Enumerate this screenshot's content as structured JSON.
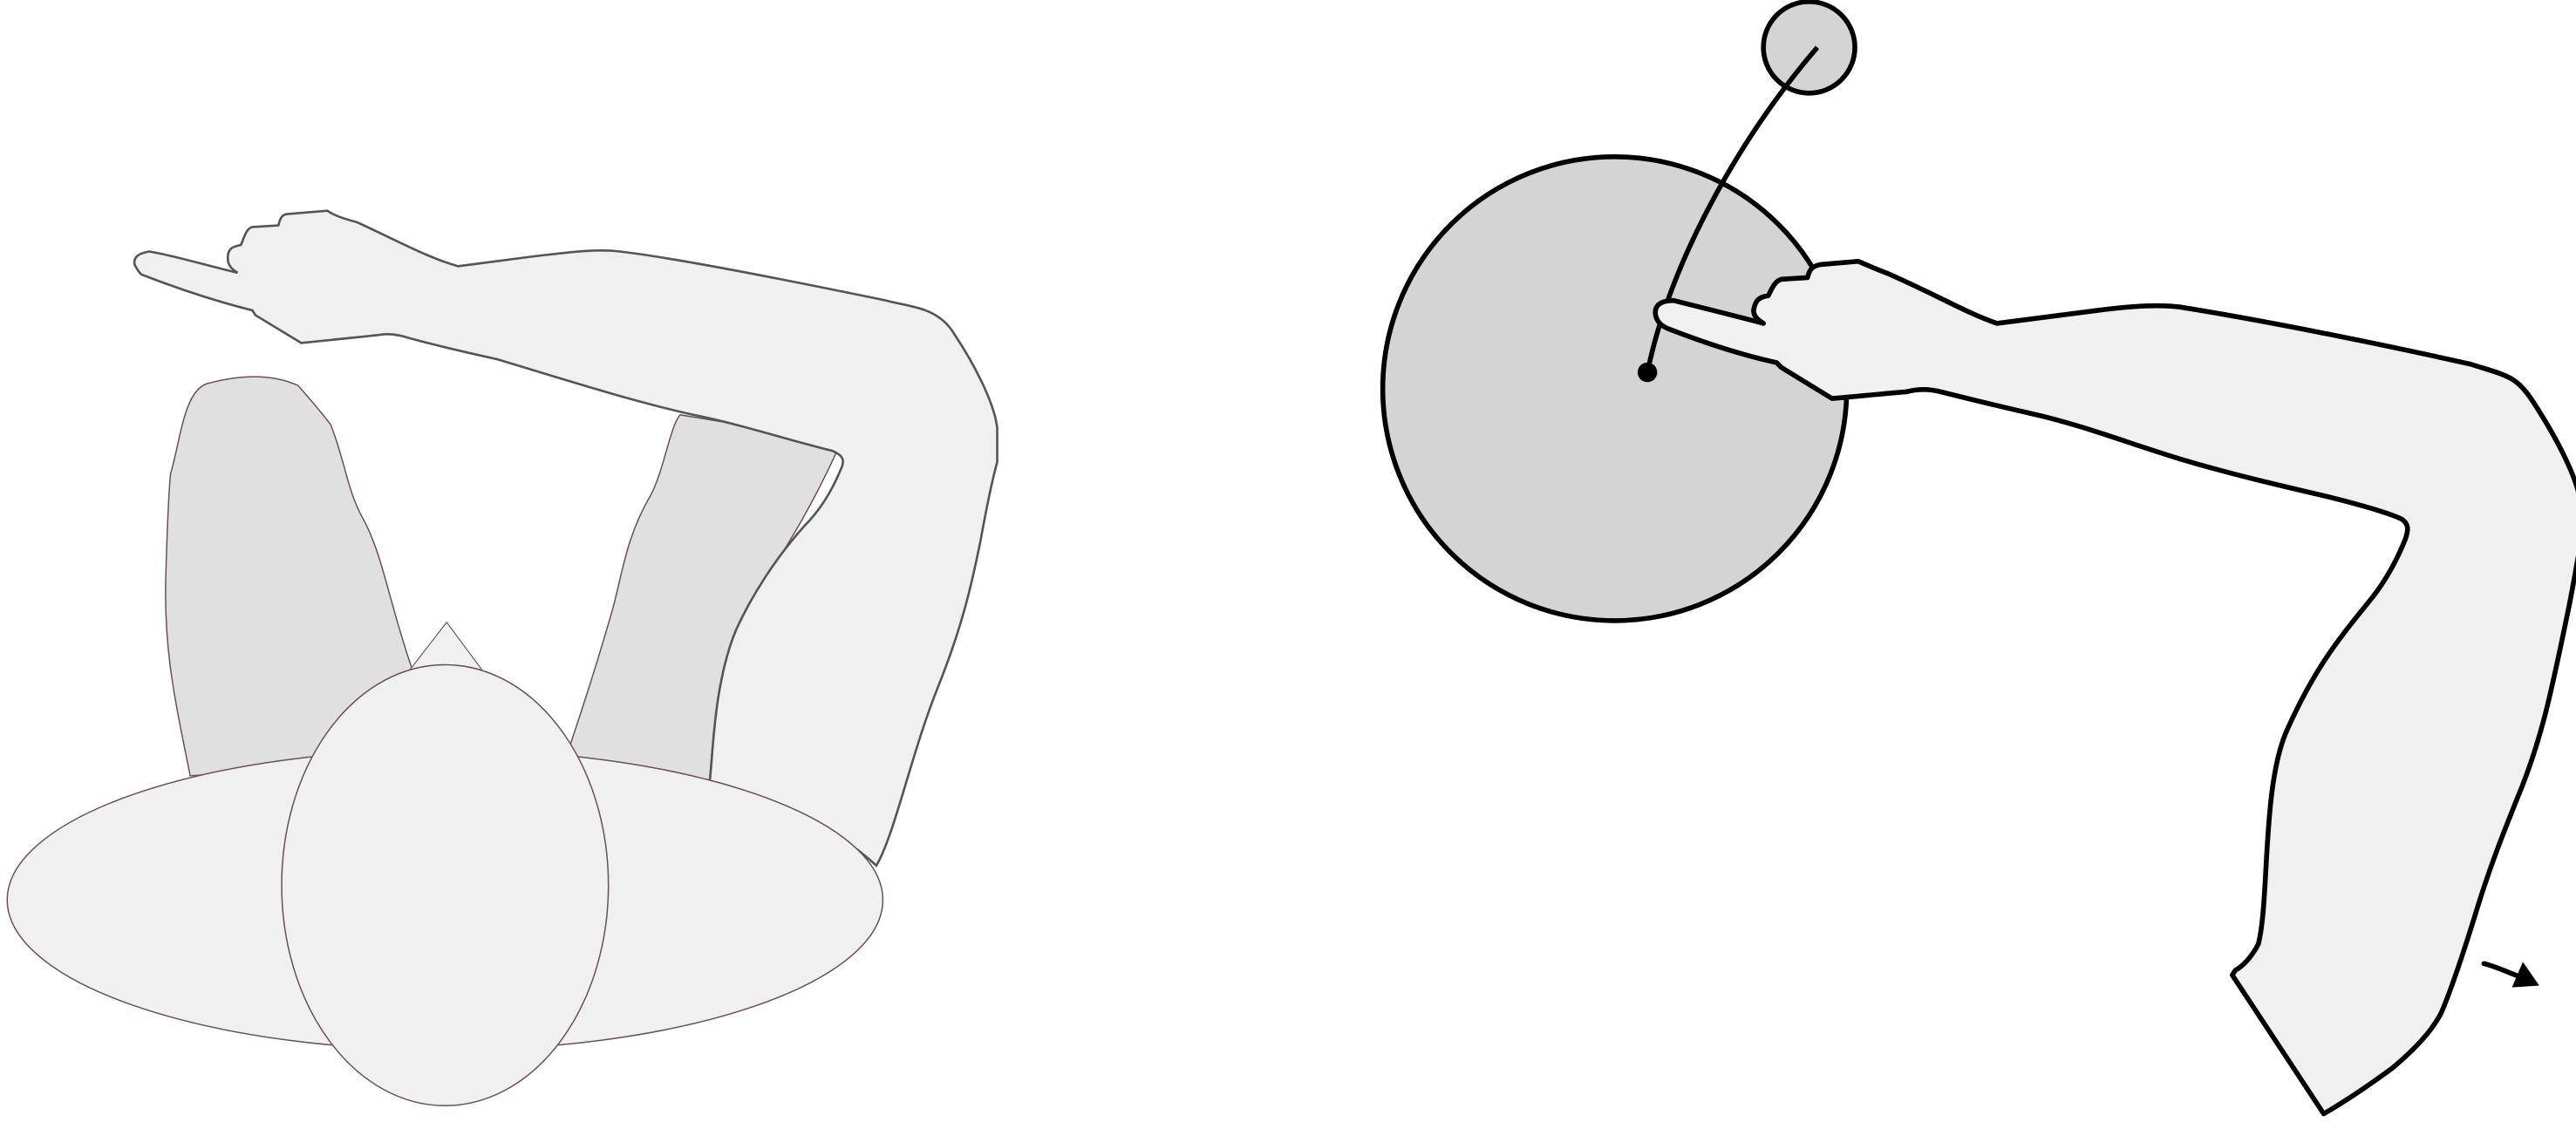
{
  "colors": {
    "background": "#ffffff",
    "body_fill": "#f0f0f0",
    "leg_fill": "#e0e0e0",
    "disc_fill": "#d4d4d4",
    "thin_outline": "#6b4f58",
    "thick_outline": "#000000"
  },
  "figures": [
    {
      "name": "top-view-person"
    },
    {
      "name": "arm-rotation-diagram"
    }
  ]
}
